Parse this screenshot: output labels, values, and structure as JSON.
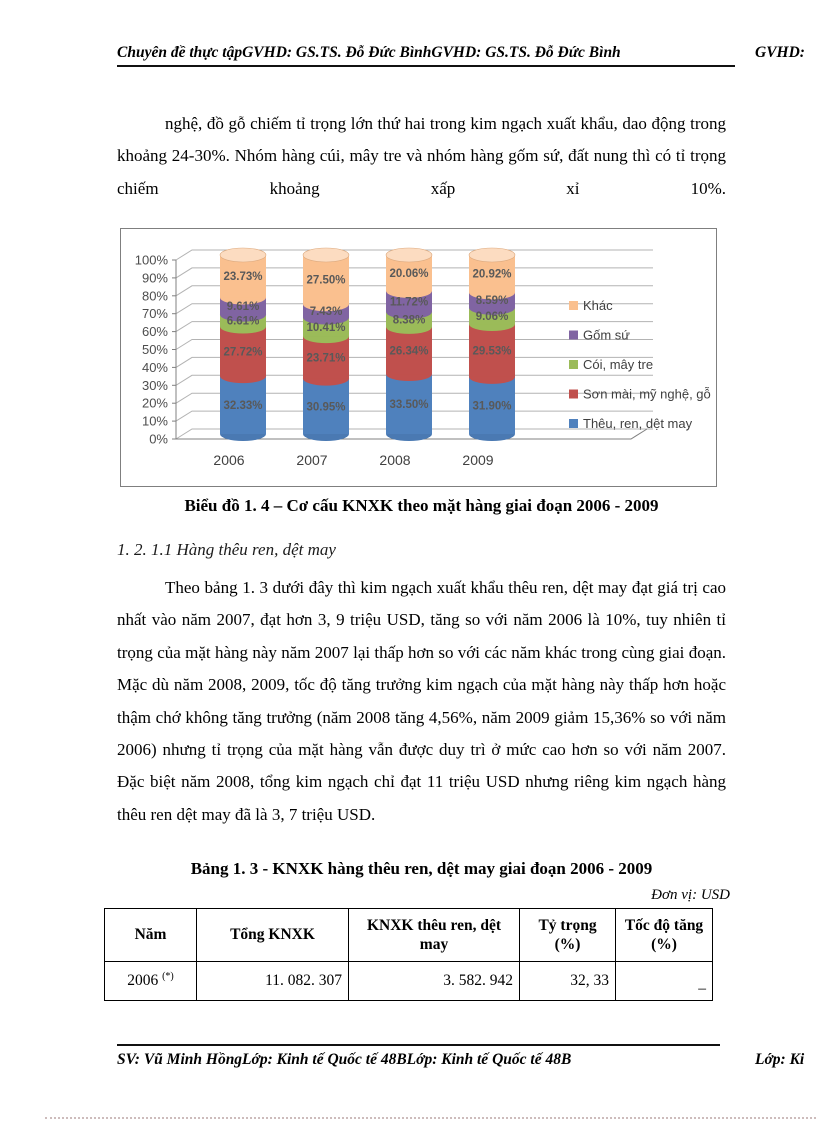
{
  "header": {
    "left": "Chuyên đề thực tậpGVHD: GS.TS. Đỗ Đức BìnhGVHD: GS.TS. Đỗ Đức Bình",
    "right": "GVHD:"
  },
  "paragraph1": "nghệ, đồ gỗ chiếm tỉ trọng lớn thứ hai trong kim ngạch xuất khẩu, dao động trong khoảng 24-30%. Nhóm hàng cúi, mây tre và nhóm hàng gốm sứ, đất nung thì có tỉ trọng chiếm khoảng xấp xỉ 10%.",
  "chart_caption": "Biểu đồ 1. 4 – Cơ cấu KNXK theo mặt hàng giai đoạn 2006 - 2009",
  "section_heading": "1. 2. 1.1 Hàng thêu ren, dệt may",
  "paragraph2": "Theo bảng 1. 3 dưới đây thì kim ngạch xuất khẩu thêu ren, dệt may đạt giá trị cao nhất vào năm 2007, đạt hơn 3, 9 triệu USD, tăng so với năm 2006 là 10%, tuy nhiên tỉ trọng của mặt hàng này năm 2007 lại thấp hơn so với các năm khác trong cùng giai đoạn. Mặc dù năm 2008, 2009, tốc độ tăng trưởng kim ngạch của mặt hàng này thấp hơn hoặc thậm chớ không tăng trưởng (năm 2008 tăng 4,56%, năm 2009 giảm 15,36% so với năm 2006) nhưng tỉ trọng của mặt hàng vẫn được duy trì ở mức cao hơn so với năm 2007. Đặc biệt năm 2008, tổng kim ngạch chỉ đạt 11 triệu USD nhưng riêng kim ngạch hàng thêu ren dệt may đã là 3, 7 triệu USD.",
  "table_caption": "Bảng 1. 3 - KNXK hàng thêu ren, dệt may giai đoạn 2006 - 2009",
  "unit_note": "Đơn vị: USD",
  "table": {
    "headers": [
      {
        "label": "Năm",
        "sub": ""
      },
      {
        "label": "Tổng KNXK",
        "sub": ""
      },
      {
        "label": "KNXK thêu ren, dệt may",
        "sub": ""
      },
      {
        "label": "Tỷ trọng",
        "sub": "(%)"
      },
      {
        "label": "Tốc độ tăng",
        "sub": "(%)"
      }
    ],
    "row": {
      "year": "2006",
      "year_note": "(*)",
      "total_knxk": "11. 082. 307",
      "knxk_theu_ren": "3. 582. 942",
      "ty_trong": "32, 33",
      "toc_do_tang": "–"
    }
  },
  "footer": {
    "left": "SV: Vũ Minh HồngLớp: Kinh tế Quốc tế 48BLớp: Kinh tế Quốc tế 48B",
    "right": "Lớp: Ki"
  },
  "chart_data": {
    "type": "bar",
    "subtype": "stacked-100-cylinder-3d",
    "categories": [
      "2006",
      "2007",
      "2008",
      "2009"
    ],
    "series": [
      {
        "name": "Thêu, ren, dệt may",
        "color": "#4f81bd",
        "values": [
          32.33,
          30.95,
          33.5,
          31.9
        ]
      },
      {
        "name": "Sơn mài, mỹ nghệ, gỗ",
        "color": "#c0504d",
        "values": [
          27.72,
          23.71,
          26.34,
          29.53
        ]
      },
      {
        "name": "Cói, mây tre",
        "color": "#9bbb59",
        "values": [
          6.61,
          10.41,
          8.38,
          9.06
        ]
      },
      {
        "name": "Gốm sứ",
        "color": "#8064a2",
        "values": [
          9.61,
          7.43,
          11.72,
          8.59
        ]
      },
      {
        "name": "Khác",
        "color": "#fac08f",
        "values": [
          23.73,
          27.5,
          20.06,
          20.92
        ]
      }
    ],
    "y_ticks": [
      "0%",
      "10%",
      "20%",
      "30%",
      "40%",
      "50%",
      "60%",
      "70%",
      "80%",
      "90%",
      "100%"
    ],
    "ylim": [
      0,
      100
    ],
    "grid": true,
    "legend_position": "right",
    "label_format": "0.00%",
    "axis_label_color": "#4d4d4d",
    "data_label_color": "#595959",
    "gridline_color": "#b3b3b3"
  }
}
